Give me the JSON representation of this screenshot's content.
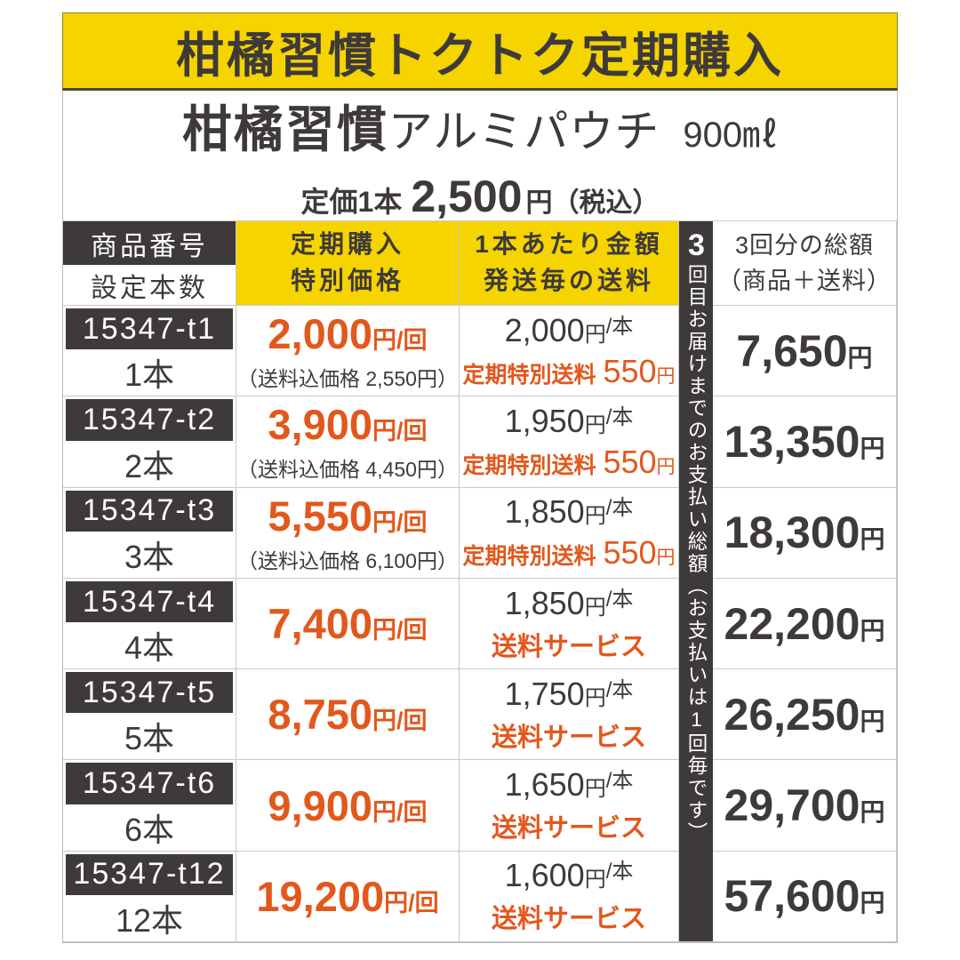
{
  "colors": {
    "accent_yellow": "#f5d400",
    "accent_orange": "#e2581c",
    "dark": "#3e3a39"
  },
  "banner": {
    "title": "柑橘習慣トクトク定期購入"
  },
  "product": {
    "name_main": "柑橘習慣",
    "name_sub": "アルミパウチ",
    "volume": "900㎖",
    "regular_price_label": "定価1本",
    "regular_price": "2,500",
    "regular_price_suffix": "円（税込）"
  },
  "table": {
    "header": {
      "col1_top": "商品番号",
      "col1_bottom": "設定本数",
      "col2_line1": "定期購入",
      "col2_line2": "特別価格",
      "col3_line1": "1本あたり金額",
      "col3_line2": "発送毎の送料",
      "col5_line1": "3回分の総額",
      "col5_line2": "（商品＋送料）"
    },
    "vertical_note": {
      "first": "3",
      "rest": "回目お届けまでのお支払い総額（お支払いは1回毎です）"
    },
    "rows": [
      {
        "code": "15347-t1",
        "qty": "1本",
        "price": "2,000",
        "price_yen": "円",
        "price_per": "/回",
        "note": "（送料込価格 2,550円）",
        "pb": "2,000",
        "pb_yen": "円",
        "pb_per": "/本",
        "ship_label": "定期特別送料",
        "ship_fee": "550",
        "ship_fee_yen": "円",
        "ship_service": "",
        "total": "7,650",
        "total_yen": "円"
      },
      {
        "code": "15347-t2",
        "qty": "2本",
        "price": "3,900",
        "price_yen": "円",
        "price_per": "/回",
        "note": "（送料込価格 4,450円）",
        "pb": "1,950",
        "pb_yen": "円",
        "pb_per": "/本",
        "ship_label": "定期特別送料",
        "ship_fee": "550",
        "ship_fee_yen": "円",
        "ship_service": "",
        "total": "13,350",
        "total_yen": "円"
      },
      {
        "code": "15347-t3",
        "qty": "3本",
        "price": "5,550",
        "price_yen": "円",
        "price_per": "/回",
        "note": "（送料込価格 6,100円）",
        "pb": "1,850",
        "pb_yen": "円",
        "pb_per": "/本",
        "ship_label": "定期特別送料",
        "ship_fee": "550",
        "ship_fee_yen": "円",
        "ship_service": "",
        "total": "18,300",
        "total_yen": "円"
      },
      {
        "code": "15347-t4",
        "qty": "4本",
        "price": "7,400",
        "price_yen": "円",
        "price_per": "/回",
        "note": "",
        "pb": "1,850",
        "pb_yen": "円",
        "pb_per": "/本",
        "ship_label": "",
        "ship_fee": "",
        "ship_fee_yen": "",
        "ship_service": "送料サービス",
        "total": "22,200",
        "total_yen": "円"
      },
      {
        "code": "15347-t5",
        "qty": "5本",
        "price": "8,750",
        "price_yen": "円",
        "price_per": "/回",
        "note": "",
        "pb": "1,750",
        "pb_yen": "円",
        "pb_per": "/本",
        "ship_label": "",
        "ship_fee": "",
        "ship_fee_yen": "",
        "ship_service": "送料サービス",
        "total": "26,250",
        "total_yen": "円"
      },
      {
        "code": "15347-t6",
        "qty": "6本",
        "price": "9,900",
        "price_yen": "円",
        "price_per": "/回",
        "note": "",
        "pb": "1,650",
        "pb_yen": "円",
        "pb_per": "/本",
        "ship_label": "",
        "ship_fee": "",
        "ship_fee_yen": "",
        "ship_service": "送料サービス",
        "total": "29,700",
        "total_yen": "円"
      },
      {
        "code": "15347-t12",
        "qty": "12本",
        "price": "19,200",
        "price_yen": "円",
        "price_per": "/回",
        "note": "",
        "pb": "1,600",
        "pb_yen": "円",
        "pb_per": "/本",
        "ship_label": "",
        "ship_fee": "",
        "ship_fee_yen": "",
        "ship_service": "送料サービス",
        "total": "57,600",
        "total_yen": "円"
      }
    ]
  }
}
